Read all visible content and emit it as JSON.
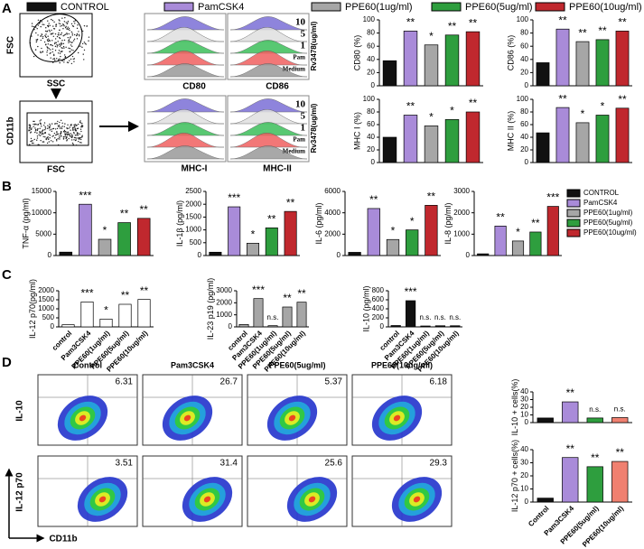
{
  "panel_labels": [
    "A",
    "B",
    "C",
    "D"
  ],
  "legend_a": [
    {
      "name": "CONTROL",
      "color": "#111111"
    },
    {
      "name": "PamCSK4",
      "color": "#a98bd9"
    },
    {
      "name": "PPE60(1ug/ml)",
      "color": "#a6a6a6"
    },
    {
      "name": "PPE60(5ug/ml)",
      "color": "#2e9e3e"
    },
    {
      "name": "PPE60(10ug/ml)",
      "color": "#c0282e"
    }
  ],
  "legend_b": [
    {
      "name": "CONTROL",
      "color": "#111111"
    },
    {
      "name": "PamCSK4",
      "color": "#a98bd9"
    },
    {
      "name": "PPE60(1ug/ml)",
      "color": "#a6a6a6"
    },
    {
      "name": "PPE60(5ug/ml)",
      "color": "#2e9e3e"
    },
    {
      "name": "PPE60(10ug/ml)",
      "color": "#c0282e"
    }
  ],
  "flow_a": {
    "fsc": "FSC",
    "ssc": "SSC",
    "cd11b": "CD11b",
    "markers": [
      "CD80",
      "CD86",
      "MHC-I",
      "MHC-II"
    ],
    "dose_title": "Rv3478(ug/ml)",
    "doses": [
      "10",
      "5",
      "1",
      "Pam",
      "Medium"
    ]
  },
  "flow_d": {
    "columns": [
      "Control",
      "Pam3CSK4",
      "PPE60(5ug/ml)",
      "PPE60(10ug/ml)"
    ],
    "row_labels": [
      "IL-10",
      "IL-12 p70"
    ],
    "x_label": "CD11b",
    "il10_percent": [
      "6.31",
      "26.7",
      "5.37",
      "6.18"
    ],
    "il12_percent": [
      "3.51",
      "31.4",
      "25.6",
      "29.3"
    ]
  },
  "chart_data": [
    {
      "type": "bar",
      "y_label": "CD80 (%)",
      "values": [
        38,
        83,
        62,
        77,
        82
      ],
      "colors": [
        "#111111",
        "#a98bd9",
        "#a6a6a6",
        "#2e9e3e",
        "#c0282e"
      ],
      "annotations": [
        null,
        "**",
        "*",
        "**",
        "**"
      ],
      "ylim": [
        0,
        100
      ],
      "yticks": [
        0,
        20,
        40,
        60,
        80,
        100
      ]
    },
    {
      "type": "bar",
      "y_label": "CD86 (%)",
      "values": [
        35,
        86,
        67,
        70,
        83
      ],
      "colors": [
        "#111111",
        "#a98bd9",
        "#a6a6a6",
        "#2e9e3e",
        "#c0282e"
      ],
      "annotations": [
        null,
        "**",
        "**",
        "**",
        "**"
      ],
      "ylim": [
        0,
        100
      ],
      "yticks": [
        0,
        20,
        40,
        60,
        80,
        100
      ]
    },
    {
      "type": "bar",
      "y_label": "MHC I (%)",
      "values": [
        40,
        75,
        58,
        68,
        80
      ],
      "colors": [
        "#111111",
        "#a98bd9",
        "#a6a6a6",
        "#2e9e3e",
        "#c0282e"
      ],
      "annotations": [
        null,
        "**",
        "*",
        "*",
        "**"
      ],
      "ylim": [
        0,
        100
      ],
      "yticks": [
        0,
        20,
        40,
        60,
        80,
        100
      ]
    },
    {
      "type": "bar",
      "y_label": "MHC II (%)",
      "values": [
        47,
        87,
        63,
        75,
        86
      ],
      "colors": [
        "#111111",
        "#a98bd9",
        "#a6a6a6",
        "#2e9e3e",
        "#c0282e"
      ],
      "annotations": [
        null,
        "**",
        "*",
        "*",
        "**"
      ],
      "ylim": [
        0,
        100
      ],
      "yticks": [
        0,
        20,
        40,
        60,
        80,
        100
      ]
    },
    {
      "type": "bar",
      "y_label": "TNF-α (pg/ml)",
      "values": [
        800,
        12000,
        3800,
        7700,
        8700
      ],
      "colors": [
        "#111111",
        "#a98bd9",
        "#a6a6a6",
        "#2e9e3e",
        "#c0282e"
      ],
      "annotations": [
        null,
        "***",
        "*",
        "**",
        "**"
      ],
      "ylim": [
        0,
        15000
      ],
      "yticks": [
        0,
        5000,
        10000,
        15000
      ]
    },
    {
      "type": "bar",
      "y_label": "IL-1β (pg/ml)",
      "values": [
        130,
        1900,
        480,
        1080,
        1720
      ],
      "colors": [
        "#111111",
        "#a98bd9",
        "#a6a6a6",
        "#2e9e3e",
        "#c0282e"
      ],
      "annotations": [
        null,
        "***",
        "*",
        "**",
        "**"
      ],
      "ylim": [
        0,
        2500
      ],
      "yticks": [
        0,
        500,
        1000,
        1500,
        2000,
        2500
      ]
    },
    {
      "type": "bar",
      "y_label": "IL-6 (pg/ml)",
      "values": [
        300,
        4400,
        1500,
        2400,
        4700
      ],
      "colors": [
        "#111111",
        "#a98bd9",
        "#a6a6a6",
        "#2e9e3e",
        "#c0282e"
      ],
      "annotations": [
        null,
        "**",
        "*",
        "*",
        "**"
      ],
      "ylim": [
        0,
        6000
      ],
      "yticks": [
        0,
        2000,
        4000,
        6000
      ]
    },
    {
      "type": "bar",
      "y_label": "IL-8 (pg/ml)",
      "values": [
        80,
        1380,
        680,
        1100,
        2300
      ],
      "colors": [
        "#111111",
        "#a98bd9",
        "#a6a6a6",
        "#2e9e3e",
        "#c0282e"
      ],
      "annotations": [
        null,
        "**",
        "*",
        "**",
        "***"
      ],
      "ylim": [
        0,
        3000
      ],
      "yticks": [
        0,
        1000,
        2000,
        3000
      ]
    },
    {
      "type": "bar",
      "y_label": "IL-12 p70(pg/ml)",
      "categories": [
        "control",
        "Pam3CSK4",
        "PPE60(1ug/ml)",
        "PPE60(5ug/ml)",
        "PPE60(10ug/ml)"
      ],
      "values": [
        120,
        1380,
        430,
        1250,
        1520
      ],
      "colors": [
        "#ffffff",
        "#ffffff",
        "#ffffff",
        "#ffffff",
        "#ffffff"
      ],
      "annotations": [
        null,
        "***",
        "*",
        "**",
        "**"
      ],
      "ylim": [
        0,
        2000
      ],
      "yticks": [
        0,
        500,
        1000,
        1500,
        2000
      ]
    },
    {
      "type": "bar",
      "y_label": "IL-23 p19 (pg/ml)",
      "categories": [
        "control",
        "Pam3CSK4",
        "PPE60(1ug/ml)",
        "PPE60(5ug/ml)",
        "PPE60(10ug/ml)"
      ],
      "values": [
        200,
        2350,
        100,
        1650,
        2050
      ],
      "colors": [
        "#a6a6a6",
        "#a6a6a6",
        "#a6a6a6",
        "#a6a6a6",
        "#a6a6a6"
      ],
      "annotations": [
        null,
        "***",
        "n.s.",
        "**",
        "**"
      ],
      "ylim": [
        0,
        3000
      ],
      "yticks": [
        0,
        1000,
        2000,
        3000
      ]
    },
    {
      "type": "bar",
      "y_label": "IL-10 (pg/ml)",
      "categories": [
        "control",
        "Pam3CSK4",
        "PPE60(1ug/ml)",
        "PPE60(5ug/ml)",
        "PPE60(10ug/ml)"
      ],
      "values": [
        30,
        580,
        20,
        25,
        25
      ],
      "colors": [
        "#111111",
        "#111111",
        "#111111",
        "#111111",
        "#111111"
      ],
      "annotations": [
        null,
        "***",
        "n.s.",
        "n.s.",
        "n.s."
      ],
      "ylim": [
        0,
        800
      ],
      "yticks": [
        0,
        200,
        400,
        600,
        800
      ]
    },
    {
      "type": "bar",
      "y_label": "IL-10 + cells(%)",
      "values": [
        6,
        27,
        6,
        6.5
      ],
      "colors": [
        "#111111",
        "#a98bd9",
        "#2e9e3e",
        "#f08070"
      ],
      "annotations": [
        null,
        "**",
        "n.s.",
        "n.s."
      ],
      "ylim": [
        0,
        40
      ],
      "yticks": [
        0,
        10,
        20,
        30,
        40
      ]
    },
    {
      "type": "bar",
      "y_label": "IL-12 p70 + cells(%)",
      "categories": [
        "Control",
        "Pam3CSK4",
        "PPE60(5ug/ml)",
        "PPE60(10ug/ml)"
      ],
      "values": [
        3,
        34,
        27,
        31
      ],
      "colors": [
        "#111111",
        "#a98bd9",
        "#2e9e3e",
        "#f08070"
      ],
      "annotations": [
        null,
        "**",
        "**",
        "**"
      ],
      "ylim": [
        0,
        40
      ],
      "yticks": [
        0,
        10,
        20,
        30,
        40
      ]
    }
  ]
}
